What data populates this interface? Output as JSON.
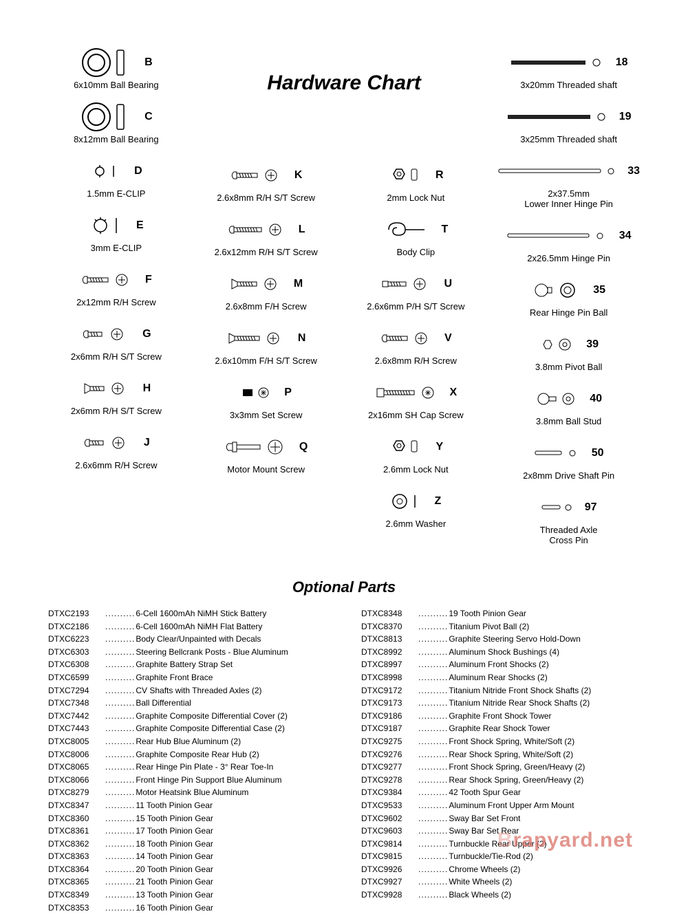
{
  "title": "Hardware Chart",
  "subtitle": "Optional Parts",
  "watermark_prefix": "B",
  "watermark_suffix": "rapyard.net",
  "columns": [
    [
      {
        "letter": "B",
        "label": "6x10mm Ball Bearing",
        "icon": "bearing-large"
      },
      {
        "letter": "C",
        "label": "8x12mm Ball Bearing",
        "icon": "bearing-large"
      },
      {
        "letter": "D",
        "label": "1.5mm E-CLIP",
        "icon": "eclip-small"
      },
      {
        "letter": "E",
        "label": "3mm E-CLIP",
        "icon": "eclip"
      },
      {
        "letter": "F",
        "label": "2x12mm R/H Screw",
        "icon": "screw-rh"
      },
      {
        "letter": "G",
        "label": "2x6mm R/H S/T Screw",
        "icon": "screw-rh-short"
      },
      {
        "letter": "H",
        "label": "2x6mm R/H S/T Screw",
        "icon": "screw-fh-short"
      },
      {
        "letter": "J",
        "label": "2.6x6mm R/H Screw",
        "icon": "screw-rh-short"
      }
    ],
    [
      {
        "letter": "K",
        "label": "2.6x8mm R/H S/T Screw",
        "icon": "screw-rh"
      },
      {
        "letter": "L",
        "label": "2.6x12mm R/H S/T Screw",
        "icon": "screw-rh-long"
      },
      {
        "letter": "M",
        "label": "2.6x8mm F/H Screw",
        "icon": "screw-fh"
      },
      {
        "letter": "N",
        "label": "2.6x10mm F/H S/T Screw",
        "icon": "screw-fh-long"
      },
      {
        "letter": "P",
        "label": "3x3mm Set Screw",
        "icon": "set-screw"
      },
      {
        "letter": "Q",
        "label": "Motor Mount Screw",
        "icon": "motor-screw"
      }
    ],
    [
      {
        "letter": "R",
        "label": "2mm Lock Nut",
        "icon": "locknut"
      },
      {
        "letter": "T",
        "label": "Body Clip",
        "icon": "bodyclip"
      },
      {
        "letter": "U",
        "label": "2.6x6mm P/H S/T Screw",
        "icon": "screw-ph"
      },
      {
        "letter": "V",
        "label": "2.6x8mm R/H Screw",
        "icon": "screw-rh"
      },
      {
        "letter": "X",
        "label": "2x16mm SH Cap Screw",
        "icon": "cap-screw"
      },
      {
        "letter": "Y",
        "label": "2.6mm Lock Nut",
        "icon": "locknut"
      },
      {
        "letter": "Z",
        "label": "2.6mm Washer",
        "icon": "washer"
      }
    ],
    [
      {
        "letter": "18",
        "label": "3x20mm Threaded shaft",
        "icon": "shaft-dark"
      },
      {
        "letter": "19",
        "label": "3x25mm Threaded shaft",
        "icon": "shaft-dark-long"
      },
      {
        "letter": "33",
        "label": "2x37.5mm",
        "label2": "Lower Inner Hinge Pin",
        "icon": "pin-long"
      },
      {
        "letter": "34",
        "label": "2x26.5mm Hinge Pin",
        "icon": "pin"
      },
      {
        "letter": "35",
        "label": "Rear Hinge Pin Ball",
        "icon": "ball-pair"
      },
      {
        "letter": "39",
        "label": "3.8mm Pivot Ball",
        "icon": "pivot-ball"
      },
      {
        "letter": "40",
        "label": "3.8mm Ball Stud",
        "icon": "ball-stud"
      },
      {
        "letter": "50",
        "label": "2x8mm Drive Shaft Pin",
        "icon": "pin-short"
      },
      {
        "letter": "97",
        "label": "Threaded Axle",
        "label2": "Cross Pin",
        "icon": "pin-tiny"
      }
    ]
  ],
  "parts_left": [
    [
      "DTXC2193",
      "6-Cell 1600mAh NiMH Stick Battery"
    ],
    [
      "DTXC2186",
      "6-Cell 1600mAh NiMH Flat Battery"
    ],
    [
      "DTXC6223",
      "Body Clear/Unpainted with Decals"
    ],
    [
      "DTXC6303",
      "Steering Bellcrank Posts - Blue Aluminum"
    ],
    [
      "DTXC6308",
      "Graphite Battery Strap Set"
    ],
    [
      "DTXC6599",
      "Graphite Front Brace"
    ],
    [
      "DTXC7294",
      "CV Shafts with Threaded Axles (2)"
    ],
    [
      "DTXC7348",
      "Ball Differential"
    ],
    [
      "DTXC7442",
      "Graphite Composite Differential Cover (2)"
    ],
    [
      "DTXC7443",
      "Graphite Composite Differential Case (2)"
    ],
    [
      "DTXC8005",
      "Rear Hub Blue Aluminum (2)"
    ],
    [
      "DTXC8006",
      "Graphite Composite Rear Hub (2)"
    ],
    [
      "DTXC8065",
      "Rear Hinge Pin Plate - 3° Rear Toe-In"
    ],
    [
      "DTXC8066",
      "Front Hinge Pin Support Blue Aluminum"
    ],
    [
      "DTXC8279",
      "Motor Heatsink Blue Aluminum"
    ],
    [
      "DTXC8347",
      "11 Tooth Pinion Gear"
    ],
    [
      "DTXC8360",
      "15 Tooth Pinion Gear"
    ],
    [
      "DTXC8361",
      "17 Tooth Pinion Gear"
    ],
    [
      "DTXC8362",
      "18 Tooth Pinion Gear"
    ],
    [
      "DTXC8363",
      "14 Tooth Pinion Gear"
    ],
    [
      "DTXC8364",
      "20 Tooth Pinion Gear"
    ],
    [
      "DTXC8365",
      "21 Tooth Pinion Gear"
    ],
    [
      "DTXC8349",
      "13 Tooth Pinion Gear"
    ],
    [
      "DTXC8353",
      "16 Tooth Pinion Gear"
    ]
  ],
  "parts_right": [
    [
      "DTXC8348",
      "19 Tooth Pinion Gear"
    ],
    [
      "DTXC8370",
      "Titanium Pivot Ball (2)"
    ],
    [
      "DTXC8813",
      "Graphite Steering Servo Hold-Down"
    ],
    [
      "DTXC8992",
      "Aluminum Shock Bushings (4)"
    ],
    [
      "DTXC8997",
      "Aluminum Front Shocks (2)"
    ],
    [
      "DTXC8998",
      "Aluminum Rear Shocks (2)"
    ],
    [
      "DTXC9172",
      "Titanium Nitride Front Shock Shafts (2)"
    ],
    [
      "DTXC9173",
      "Titanium Nitride Rear Shock Shafts (2)"
    ],
    [
      "DTXC9186",
      "Graphite Front Shock Tower"
    ],
    [
      "DTXC9187",
      "Graphite Rear Shock Tower"
    ],
    [
      "DTXC9275",
      "Front Shock Spring, White/Soft (2)"
    ],
    [
      "DTXC9276",
      "Rear Shock Spring, White/Soft (2)"
    ],
    [
      "DTXC9277",
      "Front Shock Spring, Green/Heavy (2)"
    ],
    [
      "DTXC9278",
      "Rear Shock Spring, Green/Heavy (2)"
    ],
    [
      "DTXC9384",
      "42 Tooth Spur Gear"
    ],
    [
      "DTXC9533",
      "Aluminum Front Upper Arm Mount"
    ],
    [
      "DTXC9602",
      "Sway Bar Set Front"
    ],
    [
      "DTXC9603",
      "Sway Bar Set Rear"
    ],
    [
      "DTXC9814",
      "Turnbuckle Rear Upper (2)"
    ],
    [
      "DTXC9815",
      "Turnbuckle/Tie-Rod (2)"
    ],
    [
      "DTXC9926",
      "Chrome Wheels (2)"
    ],
    [
      "DTXC9927",
      "White Wheels (2)"
    ],
    [
      "DTXC9928",
      "Black Wheels (2)"
    ]
  ],
  "colors": {
    "text": "#000000",
    "watermark": "#d9736a",
    "background": "#ffffff"
  }
}
